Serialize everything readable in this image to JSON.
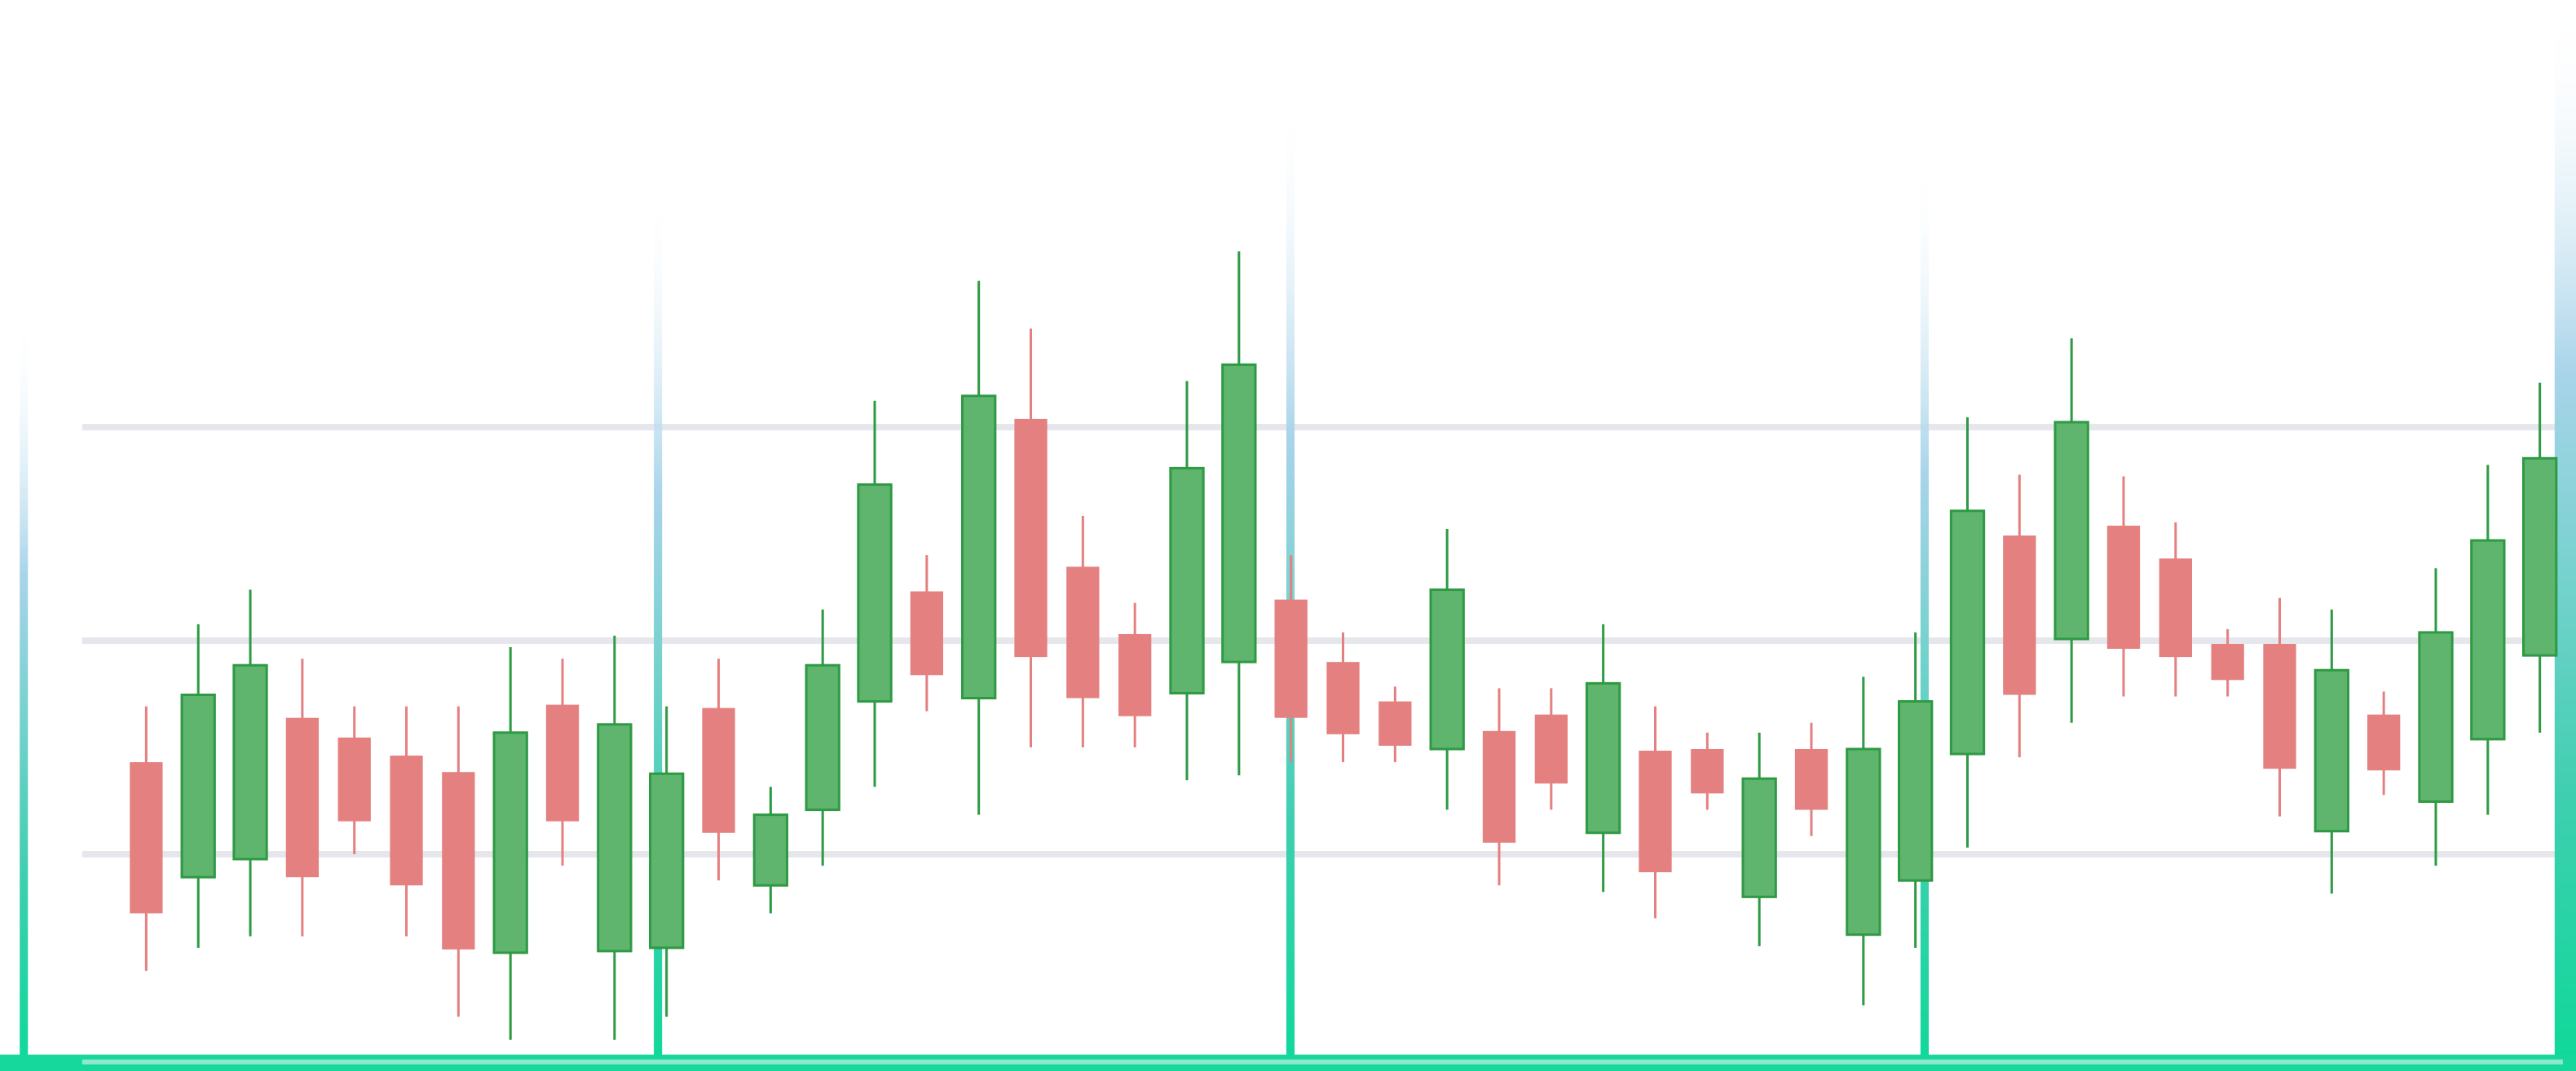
{
  "chart_data": {
    "type": "candlestick",
    "ylim": [
      0,
      650
    ],
    "yticks": [
      130,
      260,
      390
    ],
    "grid": true,
    "up_color": "#5fb56e",
    "up_edge": "#2e9a44",
    "down_color": "#e58080",
    "open": [
      186,
      116,
      127,
      213,
      201,
      190,
      180,
      70,
      221,
      71,
      73,
      219,
      111,
      157,
      223,
      290,
      225,
      395,
      305,
      264,
      228,
      247,
      285,
      247,
      223,
      194,
      205,
      215,
      143,
      193,
      194,
      104,
      194,
      81,
      114,
      191,
      324,
      261,
      330,
      310,
      258,
      258,
      144,
      215,
      162,
      200,
      251
    ],
    "high": [
      220,
      270,
      291,
      249,
      220,
      220,
      220,
      256,
      249,
      263,
      220,
      249,
      171,
      279,
      406,
      312,
      479,
      450,
      336,
      283,
      418,
      497,
      312,
      265,
      232,
      328,
      231,
      231,
      270,
      220,
      204,
      204,
      210,
      238,
      265,
      396,
      361,
      444,
      360,
      332,
      267,
      286,
      279,
      229,
      304,
      367,
      417
    ],
    "low": [
      59,
      73,
      80,
      80,
      130,
      80,
      31,
      17,
      123,
      17,
      31,
      114,
      94,
      123,
      171,
      217,
      154,
      195,
      195,
      195,
      175,
      178,
      186,
      186,
      186,
      157,
      111,
      157,
      107,
      91,
      157,
      74,
      141,
      38,
      73,
      134,
      189,
      210,
      226,
      226,
      226,
      153,
      106,
      166,
      123,
      154,
      204
    ],
    "close": [
      94,
      227,
      245,
      116,
      150,
      111,
      72,
      204,
      150,
      209,
      179,
      143,
      154,
      245,
      355,
      239,
      409,
      250,
      225,
      214,
      365,
      428,
      213,
      203,
      196,
      291,
      137,
      173,
      234,
      119,
      167,
      176,
      157,
      194,
      223,
      339,
      227,
      393,
      255,
      250,
      236,
      182,
      242,
      181,
      265,
      321,
      371
    ]
  }
}
